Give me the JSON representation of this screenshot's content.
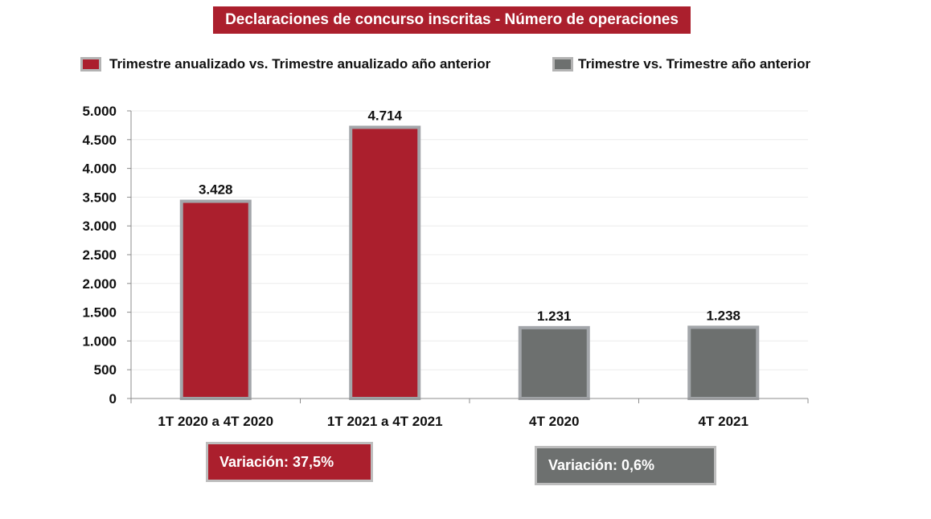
{
  "colors": {
    "red": "#ab1f2d",
    "gray": "#6d706f",
    "bar_border": "#a3a6aa"
  },
  "chart_data": {
    "type": "bar",
    "title": "Declaraciones de concurso inscritas - Número de operaciones",
    "categories": [
      "1T 2020 a 4T 2020",
      "1T 2021 a 4T 2021",
      "4T 2020",
      "4T 2021"
    ],
    "values": [
      3428,
      4714,
      1231,
      1238
    ],
    "value_labels": [
      "3.428",
      "4.714",
      "1.231",
      "1.238"
    ],
    "series_index": [
      0,
      0,
      1,
      1
    ],
    "series": [
      {
        "name": "Trimestre anualizado vs. Trimestre anualizado año anterior",
        "color": "#ab1f2d"
      },
      {
        "name": "Trimestre vs. Trimestre año anterior",
        "color": "#6d706f"
      }
    ],
    "ylim": [
      0,
      5000
    ],
    "yticks": [
      0,
      500,
      1000,
      1500,
      2000,
      2500,
      3000,
      3500,
      4000,
      4500,
      5000
    ],
    "ytick_labels": [
      "0",
      "500",
      "1.000",
      "1.500",
      "2.000",
      "2.500",
      "3.000",
      "3.500",
      "4.000",
      "4.500",
      "5.000"
    ],
    "grid": true,
    "legend": "top",
    "xlabel": "",
    "ylabel": ""
  },
  "annotations": [
    {
      "text": "Variación:  37,5%",
      "color": "#ab1f2d"
    },
    {
      "text": "Variación: 0,6%",
      "color": "#6d706f"
    }
  ]
}
